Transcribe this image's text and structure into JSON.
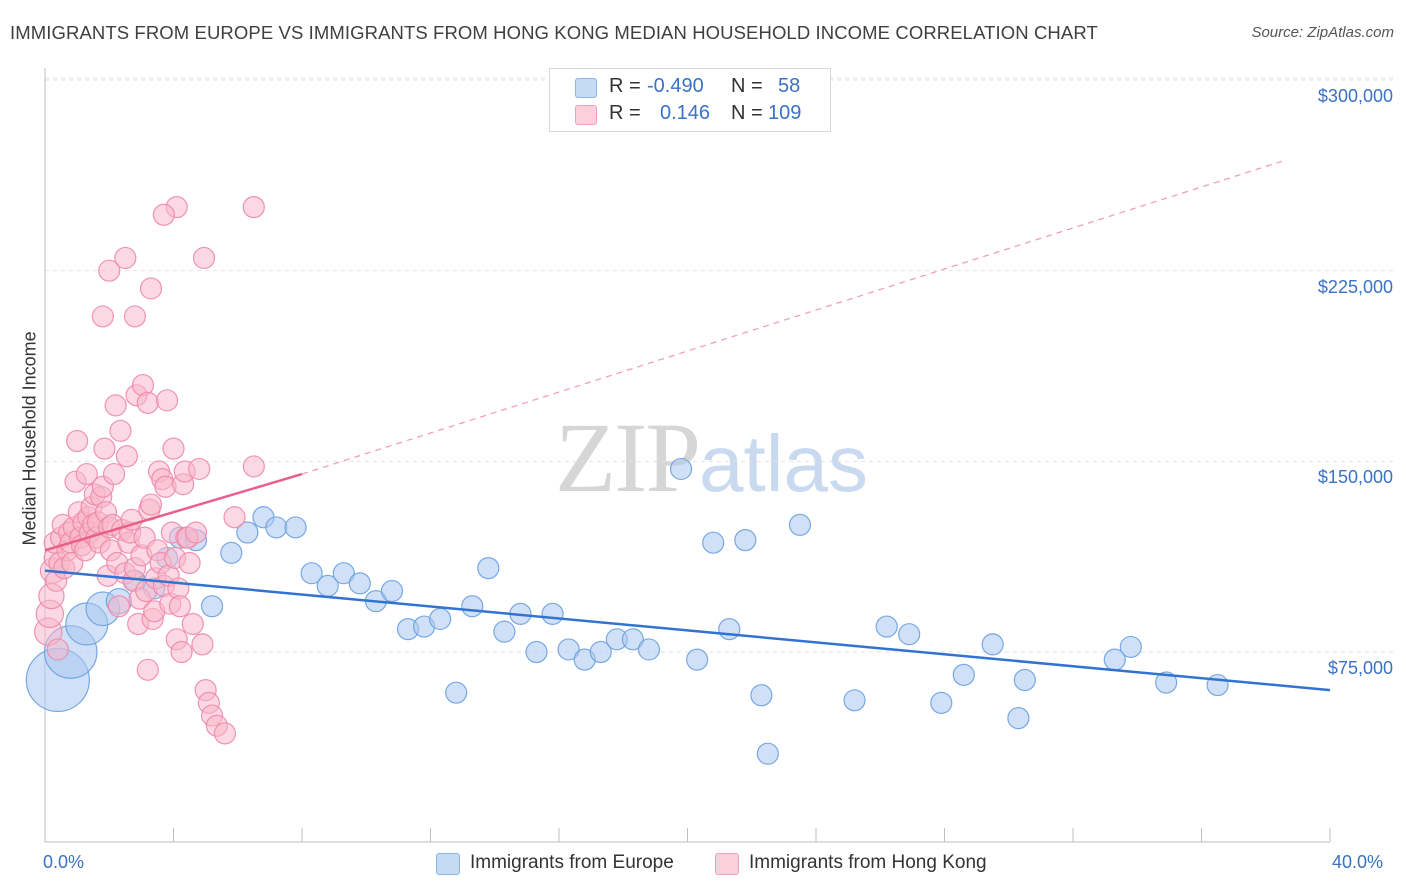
{
  "title": "IMMIGRANTS FROM EUROPE VS IMMIGRANTS FROM HONG KONG MEDIAN HOUSEHOLD INCOME CORRELATION CHART",
  "source": "Source: ZipAtlas.com",
  "watermark": {
    "zip": "ZIP",
    "atlas": "atlas"
  },
  "legend": {
    "rows": [
      {
        "r_label": "R =",
        "r_value": "-0.490",
        "n_label": "N =",
        "n_value": "58",
        "color": "#a9c8f0"
      },
      {
        "r_label": "R =",
        "r_value": "0.146",
        "n_label": "N =",
        "n_value": "109",
        "color": "#f7b8cc"
      }
    ]
  },
  "chart_data": {
    "type": "scatter",
    "xlabel": "",
    "ylabel": "Median Household Income",
    "xlim": [
      0,
      40
    ],
    "ylim": [
      20000,
      310000
    ],
    "x_tick_labels": [
      "0.0%",
      "40.0%"
    ],
    "y_ticks": [
      75000,
      150000,
      225000,
      300000
    ],
    "y_tick_labels": [
      "$75,000",
      "$150,000",
      "$225,000",
      "$300,000"
    ],
    "grid": "horizontal-dashed",
    "legend_position": "bottom",
    "series": [
      {
        "name": "Immigrants from Europe",
        "color": "#6aa0e0",
        "fill": "#a9c8f0",
        "trend": {
          "x": [
            0,
            40
          ],
          "y": [
            107000,
            60000
          ],
          "color": "#3273d2"
        },
        "points": [
          [
            0.4,
            64000,
            3
          ],
          [
            0.8,
            75000,
            2.5
          ],
          [
            1.3,
            86000,
            2
          ],
          [
            1.8,
            92000,
            1.6
          ],
          [
            2.3,
            95000,
            1.2
          ],
          [
            2.8,
            103000,
            1
          ],
          [
            3.4,
            100000,
            1
          ],
          [
            3.8,
            112000,
            1
          ],
          [
            4.2,
            120000,
            1
          ],
          [
            4.7,
            119000,
            1
          ],
          [
            5.2,
            93000,
            1
          ],
          [
            5.8,
            114000,
            1
          ],
          [
            6.3,
            122000,
            1
          ],
          [
            6.8,
            128000,
            1
          ],
          [
            7.2,
            124000,
            1
          ],
          [
            7.8,
            124000,
            1
          ],
          [
            8.3,
            106000,
            1
          ],
          [
            8.8,
            101000,
            1
          ],
          [
            9.3,
            106000,
            1
          ],
          [
            9.8,
            102000,
            1
          ],
          [
            10.3,
            95000,
            1
          ],
          [
            10.8,
            99000,
            1
          ],
          [
            11.3,
            84000,
            1
          ],
          [
            11.8,
            85000,
            1
          ],
          [
            12.3,
            88000,
            1
          ],
          [
            12.8,
            59000,
            1
          ],
          [
            13.3,
            93000,
            1
          ],
          [
            13.8,
            108000,
            1
          ],
          [
            14.3,
            83000,
            1
          ],
          [
            14.8,
            90000,
            1
          ],
          [
            15.3,
            75000,
            1
          ],
          [
            15.8,
            90000,
            1
          ],
          [
            16.3,
            76000,
            1
          ],
          [
            16.8,
            72000,
            1
          ],
          [
            17.3,
            75000,
            1
          ],
          [
            17.8,
            80000,
            1
          ],
          [
            18.3,
            80000,
            1
          ],
          [
            18.8,
            76000,
            1
          ],
          [
            19.8,
            147000,
            1
          ],
          [
            20.3,
            72000,
            1
          ],
          [
            20.8,
            118000,
            1
          ],
          [
            21.3,
            84000,
            1
          ],
          [
            21.8,
            119000,
            1
          ],
          [
            22.3,
            58000,
            1
          ],
          [
            22.5,
            35000,
            1
          ],
          [
            23.5,
            125000,
            1
          ],
          [
            25.2,
            56000,
            1
          ],
          [
            26.2,
            85000,
            1
          ],
          [
            26.9,
            82000,
            1
          ],
          [
            27.9,
            55000,
            1
          ],
          [
            28.6,
            66000,
            1
          ],
          [
            29.5,
            78000,
            1
          ],
          [
            30.3,
            49000,
            1
          ],
          [
            30.5,
            64000,
            1
          ],
          [
            33.3,
            72000,
            1
          ],
          [
            33.8,
            77000,
            1
          ],
          [
            34.9,
            63000,
            1
          ],
          [
            36.5,
            62000,
            1
          ]
        ]
      },
      {
        "name": "Immigrants from Hong Kong",
        "color": "#ee88a8",
        "fill": "#f7b8cc",
        "trend": {
          "x": [
            0,
            8
          ],
          "y": [
            115000,
            145000
          ],
          "color": "#e8608a",
          "dashed_extension": {
            "x": [
              8,
              38.5
            ],
            "y": [
              145000,
              268000
            ]
          }
        },
        "points": [
          [
            0.1,
            83000,
            1.3
          ],
          [
            0.15,
            90000,
            1.3
          ],
          [
            0.2,
            97000,
            1.2
          ],
          [
            0.25,
            107000,
            1.2
          ],
          [
            0.3,
            112000,
            1
          ],
          [
            0.3,
            118000,
            1
          ],
          [
            0.35,
            103000,
            1
          ],
          [
            0.4,
            76000,
            1
          ],
          [
            0.45,
            110000,
            1
          ],
          [
            0.5,
            120000,
            1
          ],
          [
            0.55,
            125000,
            1
          ],
          [
            0.6,
            108000,
            1
          ],
          [
            0.7,
            115000,
            1
          ],
          [
            0.75,
            122000,
            1
          ],
          [
            0.8,
            118000,
            1
          ],
          [
            0.85,
            110000,
            1
          ],
          [
            0.9,
            124000,
            1
          ],
          [
            0.95,
            142000,
            1
          ],
          [
            1.0,
            158000,
            1
          ],
          [
            1.05,
            130000,
            1
          ],
          [
            1.1,
            120000,
            1
          ],
          [
            1.15,
            117000,
            1
          ],
          [
            1.2,
            126000,
            1
          ],
          [
            1.25,
            115000,
            1
          ],
          [
            1.3,
            145000,
            1
          ],
          [
            1.35,
            128000,
            1
          ],
          [
            1.4,
            122000,
            1
          ],
          [
            1.45,
            132000,
            1
          ],
          [
            1.5,
            125000,
            1
          ],
          [
            1.55,
            137000,
            1
          ],
          [
            1.6,
            120000,
            1
          ],
          [
            1.65,
            126000,
            1
          ],
          [
            1.7,
            118000,
            1
          ],
          [
            1.75,
            136000,
            1
          ],
          [
            1.8,
            140000,
            1
          ],
          [
            1.85,
            155000,
            1
          ],
          [
            1.9,
            130000,
            1
          ],
          [
            1.95,
            105000,
            1
          ],
          [
            2.0,
            124000,
            1
          ],
          [
            2.05,
            115000,
            1
          ],
          [
            2.1,
            125000,
            1
          ],
          [
            2.15,
            145000,
            1
          ],
          [
            2.2,
            172000,
            1
          ],
          [
            2.25,
            110000,
            1
          ],
          [
            2.3,
            93000,
            1
          ],
          [
            2.35,
            162000,
            1
          ],
          [
            2.4,
            123000,
            1
          ],
          [
            2.5,
            106000,
            1
          ],
          [
            2.55,
            152000,
            1
          ],
          [
            2.6,
            118000,
            1
          ],
          [
            2.65,
            122000,
            1
          ],
          [
            2.7,
            127000,
            1
          ],
          [
            2.75,
            103000,
            1
          ],
          [
            2.8,
            108000,
            1
          ],
          [
            2.85,
            176000,
            1
          ],
          [
            2.9,
            86000,
            1
          ],
          [
            2.95,
            96000,
            1
          ],
          [
            3.0,
            113000,
            1
          ],
          [
            3.05,
            180000,
            1
          ],
          [
            3.1,
            120000,
            1
          ],
          [
            3.15,
            99000,
            1
          ],
          [
            3.2,
            173000,
            1
          ],
          [
            3.25,
            131000,
            1
          ],
          [
            3.3,
            133000,
            1
          ],
          [
            3.35,
            88000,
            1
          ],
          [
            3.4,
            91000,
            1
          ],
          [
            3.45,
            104000,
            1
          ],
          [
            3.5,
            115000,
            1
          ],
          [
            3.55,
            146000,
            1
          ],
          [
            3.6,
            110000,
            1
          ],
          [
            3.65,
            143000,
            1
          ],
          [
            3.7,
            101000,
            1
          ],
          [
            3.75,
            140000,
            1
          ],
          [
            3.8,
            174000,
            1
          ],
          [
            3.85,
            105000,
            1
          ],
          [
            3.9,
            94000,
            1
          ],
          [
            3.95,
            122000,
            1
          ],
          [
            4.0,
            155000,
            1
          ],
          [
            4.05,
            112000,
            1
          ],
          [
            4.1,
            80000,
            1
          ],
          [
            4.15,
            100000,
            1
          ],
          [
            4.2,
            93000,
            1
          ],
          [
            4.25,
            75000,
            1
          ],
          [
            4.3,
            141000,
            1
          ],
          [
            4.35,
            146000,
            1
          ],
          [
            4.4,
            120000,
            1
          ],
          [
            4.45,
            120000,
            1
          ],
          [
            4.5,
            110000,
            1
          ],
          [
            4.6,
            86000,
            1
          ],
          [
            4.7,
            122000,
            1
          ],
          [
            4.8,
            147000,
            1
          ],
          [
            4.9,
            78000,
            1
          ],
          [
            5.0,
            60000,
            1
          ],
          [
            5.1,
            55000,
            1
          ],
          [
            5.2,
            50000,
            1
          ],
          [
            5.35,
            46000,
            1
          ],
          [
            5.6,
            43000,
            1
          ],
          [
            5.9,
            128000,
            1
          ],
          [
            6.5,
            148000,
            1
          ],
          [
            6.5,
            250000,
            1
          ],
          [
            3.3,
            218000,
            1
          ],
          [
            4.1,
            250000,
            1
          ],
          [
            3.7,
            247000,
            1
          ],
          [
            2.5,
            230000,
            1
          ],
          [
            2.0,
            225000,
            1
          ],
          [
            4.95,
            230000,
            1
          ],
          [
            2.8,
            207000,
            1
          ],
          [
            1.8,
            207000,
            1
          ],
          [
            3.2,
            68000,
            1
          ]
        ]
      }
    ]
  }
}
